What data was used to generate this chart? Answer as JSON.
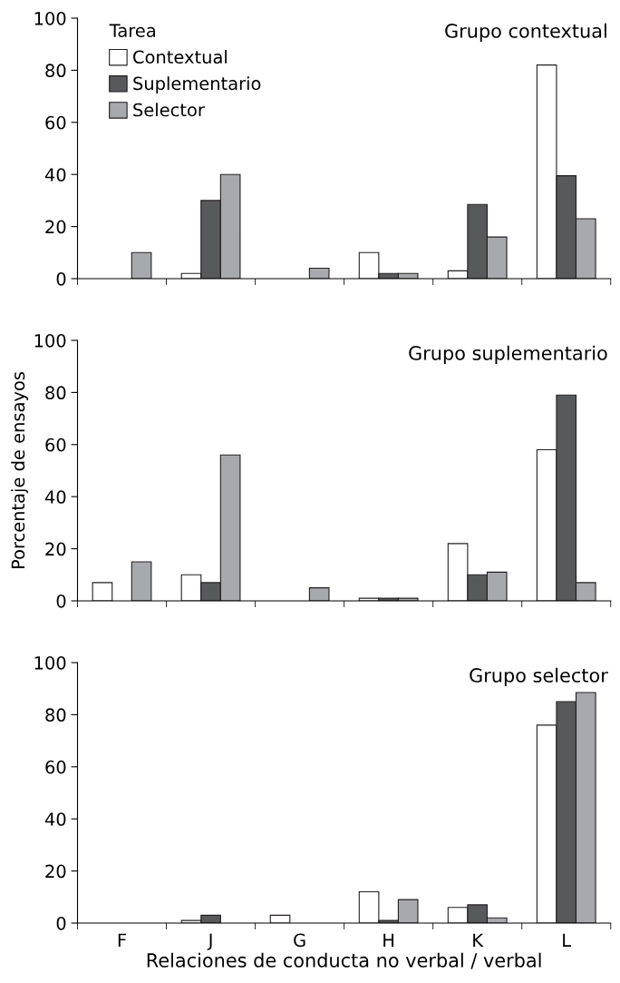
{
  "chart_data": [
    {
      "type": "bar",
      "title": "Grupo contextual",
      "categories": [
        null,
        null,
        null,
        null,
        null,
        null
      ],
      "legend_title": "Tarea",
      "legend": "top left",
      "tick_labels": "y",
      "ylim": [
        0,
        100
      ],
      "yticks": [
        0,
        20,
        40,
        60,
        80,
        100
      ],
      "grid": false,
      "series": [
        {
          "name": "Contextual",
          "color": "#ffffff",
          "values": [
            0,
            2,
            0,
            10,
            3,
            82
          ]
        },
        {
          "name": "Suplementario",
          "color": "#58595b",
          "values": [
            0,
            30,
            0,
            2,
            28.5,
            39.5
          ]
        },
        {
          "name": "Selector",
          "color": "#a7a9ac",
          "values": [
            10,
            40,
            4,
            2,
            16,
            23
          ]
        }
      ]
    },
    {
      "type": "bar",
      "title": "Grupo suplementario",
      "ylabel": "Porcentaje de ensayos",
      "categories": [
        null,
        null,
        null,
        null,
        null,
        null
      ],
      "tick_labels": "y",
      "ylim": [
        0,
        100
      ],
      "yticks": [
        0,
        20,
        40,
        60,
        80,
        100
      ],
      "grid": false,
      "series": [
        {
          "color": "#ffffff",
          "values": [
            7,
            10,
            0,
            1,
            22,
            58
          ]
        },
        {
          "color": "#58595b",
          "values": [
            0,
            7,
            0,
            1,
            10,
            79
          ]
        },
        {
          "color": "#a7a9ac",
          "values": [
            15,
            56,
            5,
            1,
            11,
            7
          ]
        }
      ]
    },
    {
      "type": "bar",
      "title": "Grupo selector",
      "xlabel": "Relaciones de conducta no verbal / verbal",
      "categories": [
        "F",
        "J",
        "G",
        "H",
        "K",
        "L"
      ],
      "ylim": [
        0,
        100
      ],
      "yticks": [
        0,
        20,
        40,
        60,
        80,
        100
      ],
      "grid": false,
      "series": [
        {
          "color": "#ffffff",
          "values": [
            0,
            1,
            3,
            12,
            6,
            76
          ]
        },
        {
          "color": "#58595b",
          "values": [
            0,
            3,
            0,
            1,
            7,
            85
          ]
        },
        {
          "color": "#a7a9ac",
          "values": [
            0,
            0,
            0,
            9,
            2,
            88.5
          ]
        }
      ]
    }
  ]
}
